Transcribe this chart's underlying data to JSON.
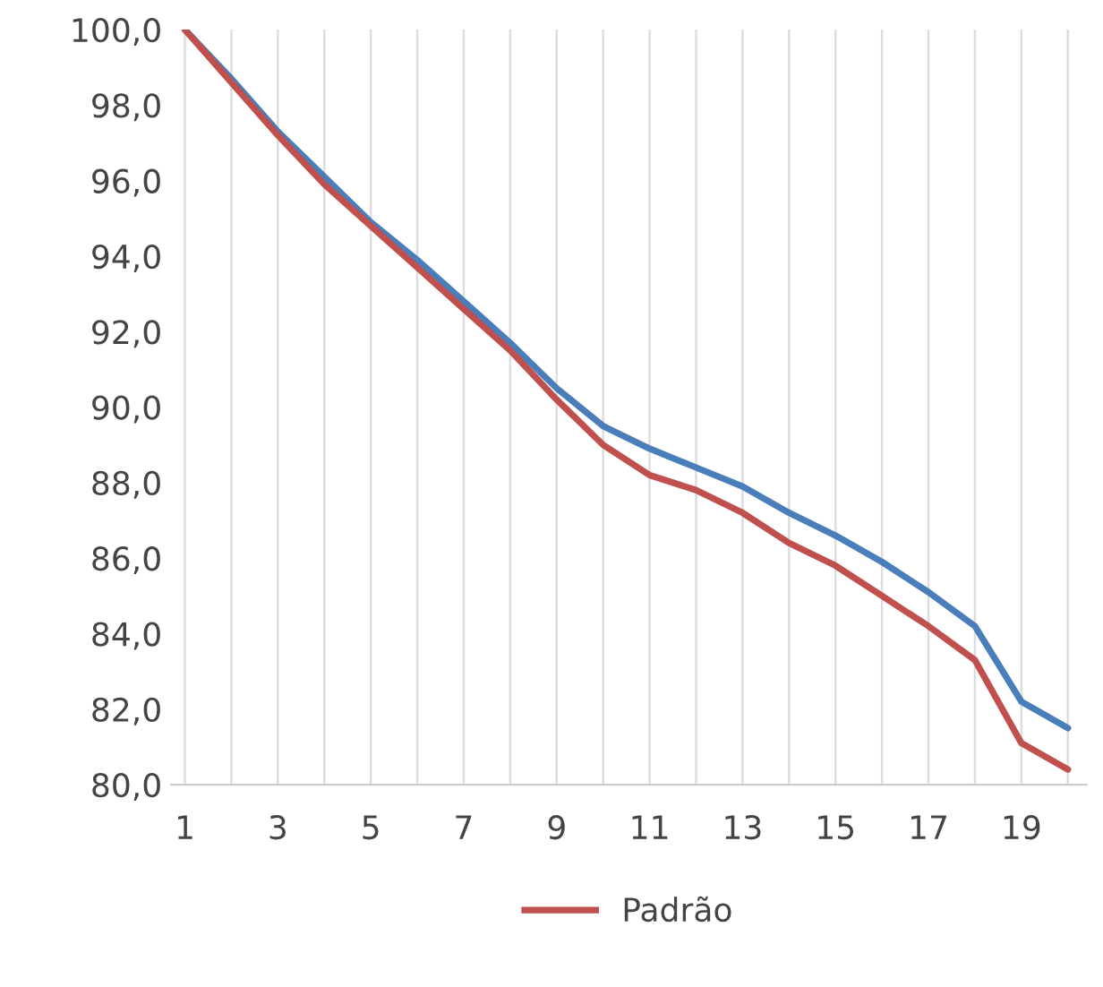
{
  "chart_data": {
    "type": "line",
    "categories": [
      "1",
      null,
      "3",
      null,
      "5",
      null,
      "7",
      null,
      "9",
      null,
      "11",
      null,
      "13",
      null,
      "15",
      null,
      "17",
      null,
      "19",
      null
    ],
    "series": [
      {
        "color": "#4a7ebb",
        "values": [
          100,
          98.7,
          97.3,
          96.1,
          94.9,
          93.9,
          92.8,
          91.7,
          90.5,
          89.5,
          88.9,
          88.4,
          87.9,
          87.2,
          86.6,
          85.9,
          85.1,
          84.2,
          82.2,
          81.5
        ]
      },
      {
        "name": "Padrão",
        "color": "#c0504d",
        "values": [
          100,
          98.6,
          97.2,
          95.9,
          94.8,
          93.7,
          92.6,
          91.5,
          90.2,
          89.0,
          88.2,
          87.8,
          87.2,
          86.4,
          85.8,
          85.0,
          84.2,
          83.3,
          81.1,
          80.4
        ]
      }
    ],
    "ylim": [
      80,
      100
    ],
    "yticks": [
      {
        "value": 80,
        "label": "80,0"
      },
      {
        "value": 82,
        "label": "82,0"
      },
      {
        "value": 84,
        "label": "84,0"
      },
      {
        "value": 86,
        "label": "86,0"
      },
      {
        "value": 88,
        "label": "88,0"
      },
      {
        "value": 90,
        "label": "90,0"
      },
      {
        "value": 92,
        "label": "92,0"
      },
      {
        "value": 94,
        "label": "94,0"
      },
      {
        "value": 96,
        "label": "96,0"
      },
      {
        "value": 98,
        "label": "98,0"
      },
      {
        "value": 100,
        "label": "100,0"
      }
    ],
    "grid": "x",
    "legend": "bottom",
    "marker": "none",
    "line_style": "solid"
  }
}
